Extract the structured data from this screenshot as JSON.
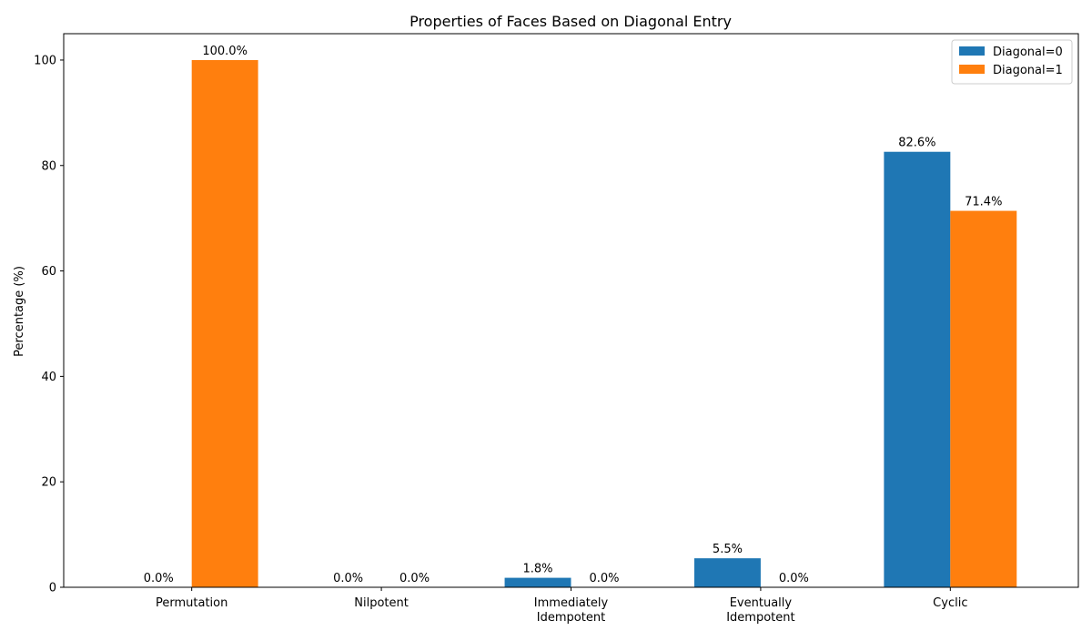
{
  "chart_data": {
    "type": "bar",
    "title": "Properties of Faces Based on Diagonal Entry",
    "xlabel": "",
    "ylabel": "Percentage (%)",
    "ylim": [
      0,
      105
    ],
    "yticks": [
      0,
      20,
      40,
      60,
      80,
      100
    ],
    "categories": [
      [
        "Permutation"
      ],
      [
        "Nilpotent"
      ],
      [
        "Immediately",
        "Idempotent"
      ],
      [
        "Eventually",
        "Idempotent"
      ],
      [
        "Cyclic"
      ]
    ],
    "series": [
      {
        "name": "Diagonal=0",
        "color": "#1f77b4",
        "values": [
          0.0,
          0.0,
          1.8,
          5.5,
          82.6
        ],
        "labels": [
          "0.0%",
          "0.0%",
          "1.8%",
          "5.5%",
          "82.6%"
        ]
      },
      {
        "name": "Diagonal=1",
        "color": "#ff7f0e",
        "values": [
          100.0,
          0.0,
          0.0,
          0.0,
          71.4
        ],
        "labels": [
          "100.0%",
          "0.0%",
          "0.0%",
          "0.0%",
          "71.4%"
        ]
      }
    ],
    "legend_position": "top-right",
    "grid": false
  }
}
